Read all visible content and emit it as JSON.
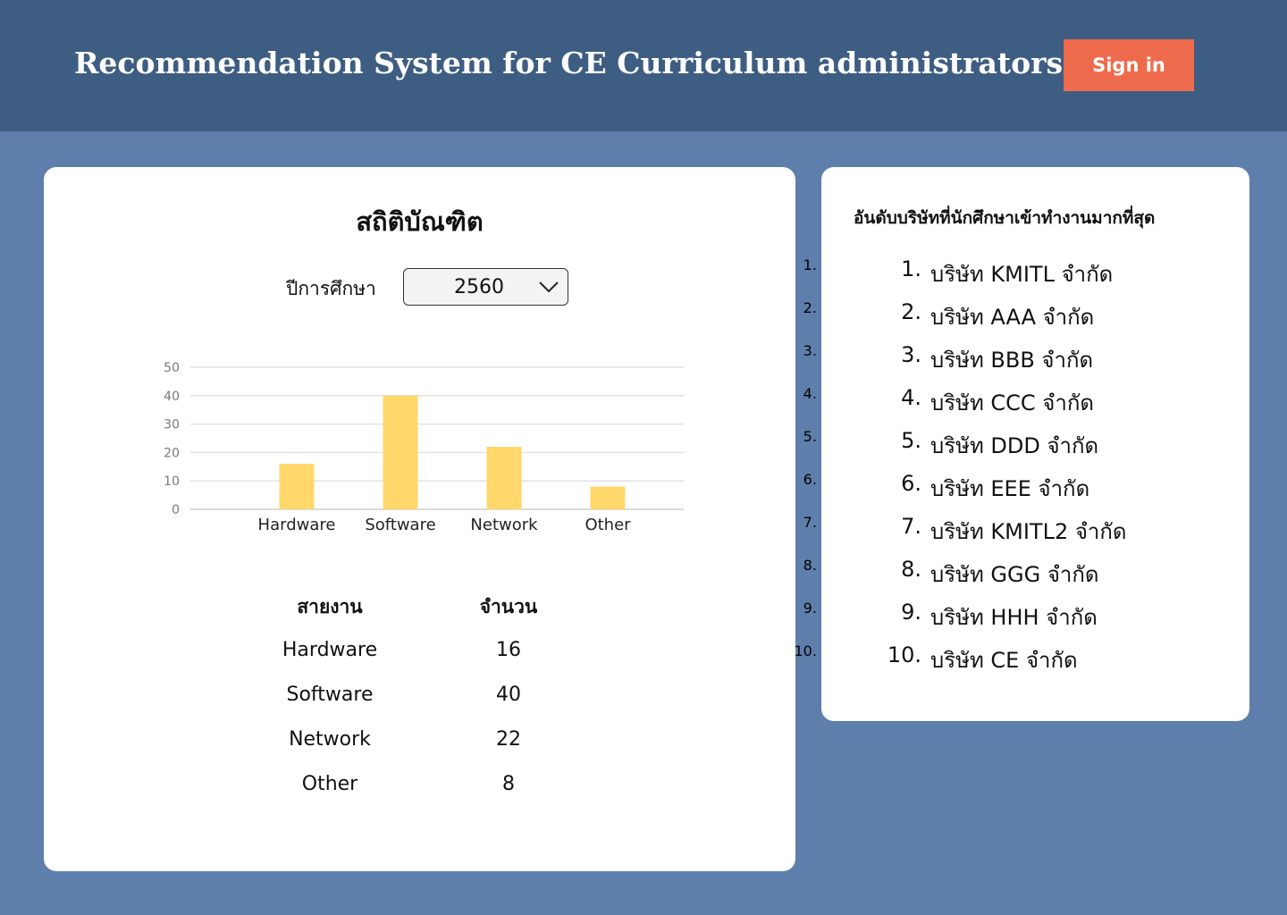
{
  "header": {
    "title": "Recommendation System for CE Curriculum administrators",
    "signin_label": "Sign in"
  },
  "stats": {
    "title": "สถิติบัณฑิต",
    "year_label": "ปีการศึกษา",
    "year_value": "2560",
    "table": {
      "headers": [
        "สายงาน",
        "จำนวน"
      ],
      "rows": [
        [
          "Hardware",
          "16"
        ],
        [
          "Software",
          "40"
        ],
        [
          "Network",
          "22"
        ],
        [
          "Other",
          "8"
        ]
      ]
    }
  },
  "chart_data": {
    "type": "bar",
    "categories": [
      "Hardware",
      "Software",
      "Network",
      "Other"
    ],
    "values": [
      16,
      40,
      22,
      8
    ],
    "ylim": [
      0,
      50
    ],
    "yticks": [
      0,
      10,
      20,
      30,
      40,
      50
    ],
    "title": "",
    "xlabel": "",
    "ylabel": "",
    "grid": true,
    "bar_color": "#ffd76b"
  },
  "ranking": {
    "title": "อันดับบริษัทที่นักศึกษาเข้าทำงานมากที่สุด",
    "items": [
      {
        "num": "1.",
        "name": "บริษัท KMITL จำกัด"
      },
      {
        "num": "2.",
        "name": "บริษัท AAA จำกัด"
      },
      {
        "num": "3.",
        "name": "บริษัท BBB จำกัด"
      },
      {
        "num": "4.",
        "name": "บริษัท CCC จำกัด"
      },
      {
        "num": "5.",
        "name": "บริษัท DDD จำกัด"
      },
      {
        "num": "6.",
        "name": "บริษัท EEE จำกัด"
      },
      {
        "num": "7.",
        "name": "บริษัท KMITL2 จำกัด"
      },
      {
        "num": "8.",
        "name": "บริษัท GGG จำกัด"
      },
      {
        "num": "9.",
        "name": "บริษัท HHH จำกัด"
      },
      {
        "num": "10.",
        "name": "บริษัท CE จำกัด"
      }
    ]
  },
  "colors": {
    "background": "#5e7fab",
    "header": "#3e5d82",
    "accent": "#ee6c4d"
  }
}
